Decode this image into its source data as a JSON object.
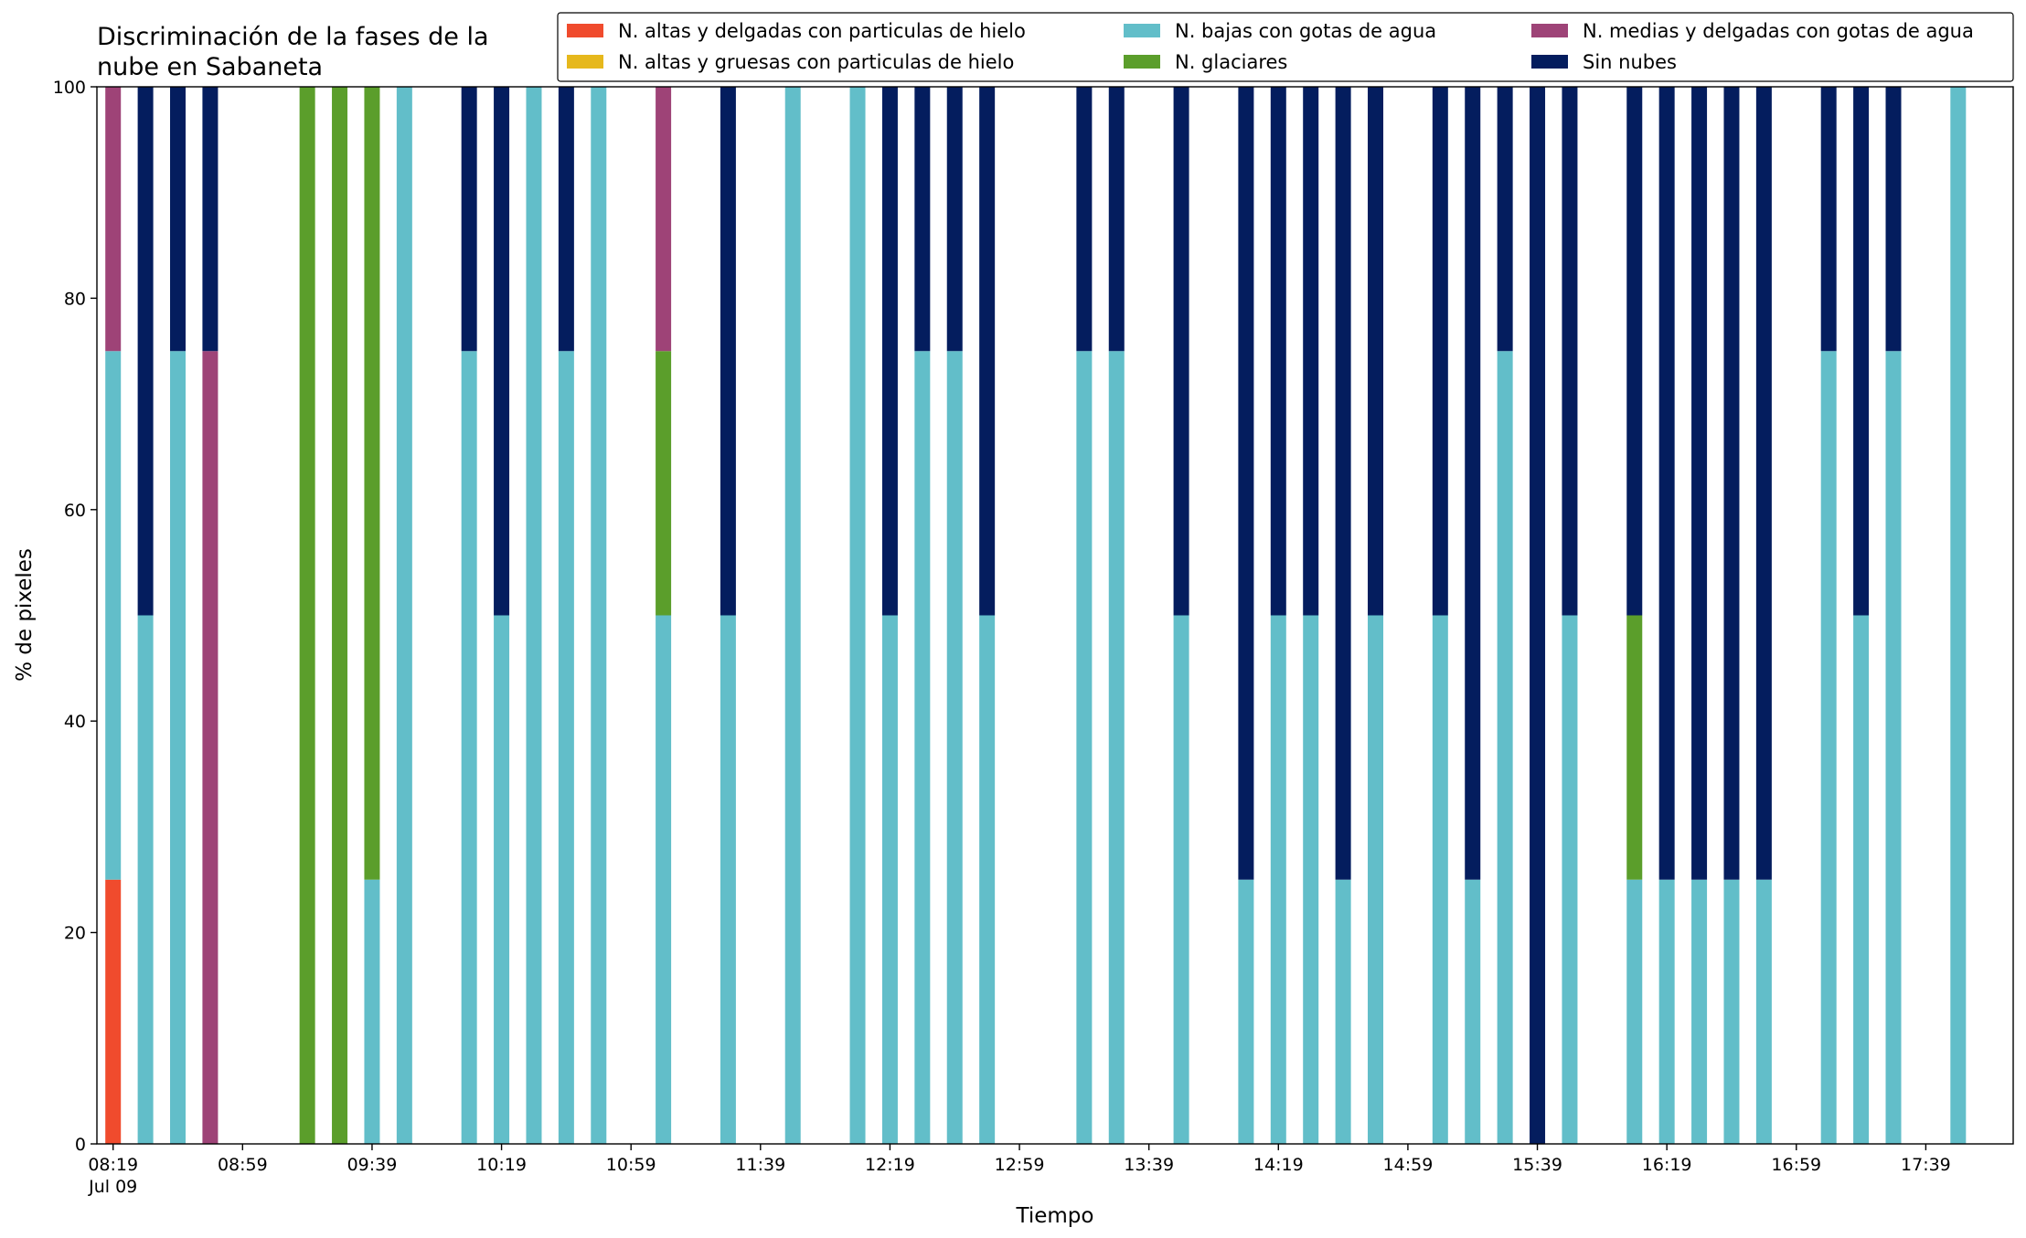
{
  "chart_data": {
    "type": "stacked_bar",
    "title": [
      "Discriminación de la fases de la",
      "nube en Sabaneta"
    ],
    "xlabel": "Tiempo",
    "ylabel": "% de pixeles",
    "x": [
      "08:19",
      "08:29",
      "08:39",
      "08:49",
      "08:59",
      "09:09",
      "09:19",
      "09:29",
      "09:39",
      "09:49",
      "09:59",
      "10:09",
      "10:19",
      "10:29",
      "10:39",
      "10:49",
      "10:59",
      "11:09",
      "11:19",
      "11:29",
      "11:39",
      "11:49",
      "11:59",
      "12:09",
      "12:19",
      "12:29",
      "12:39",
      "12:49",
      "12:59",
      "13:09",
      "13:19",
      "13:29",
      "13:39",
      "13:49",
      "13:59",
      "14:09",
      "14:19",
      "14:29",
      "14:39",
      "14:49",
      "14:59",
      "15:09",
      "15:19",
      "15:29",
      "15:39",
      "15:49",
      "15:59",
      "16:09",
      "16:19",
      "16:29",
      "16:39",
      "16:49",
      "16:59",
      "17:09",
      "17:19",
      "17:29",
      "17:39",
      "17:49"
    ],
    "series": [
      {
        "name": "N. altas y delgadas con particulas de hielo",
        "color": "#f04b2d",
        "values": [
          25,
          0,
          0,
          0,
          0,
          0,
          0,
          0,
          0,
          0,
          0,
          0,
          0,
          0,
          0,
          0,
          0,
          0,
          0,
          0,
          0,
          0,
          0,
          0,
          0,
          0,
          0,
          0,
          0,
          0,
          0,
          0,
          0,
          0,
          0,
          0,
          0,
          0,
          0,
          0,
          0,
          0,
          0,
          0,
          0,
          0,
          0,
          0,
          0,
          0,
          0,
          0,
          0,
          0,
          0,
          0,
          0,
          0
        ]
      },
      {
        "name": "N. altas y gruesas con particulas de hielo",
        "color": "#e6b81c",
        "values": [
          0,
          0,
          0,
          0,
          0,
          0,
          0,
          0,
          0,
          0,
          0,
          0,
          0,
          0,
          0,
          0,
          0,
          0,
          0,
          0,
          0,
          0,
          0,
          0,
          0,
          0,
          0,
          0,
          0,
          0,
          0,
          0,
          0,
          0,
          0,
          0,
          0,
          0,
          0,
          0,
          0,
          0,
          0,
          0,
          0,
          0,
          0,
          0,
          0,
          0,
          0,
          0,
          0,
          0,
          0,
          0,
          0,
          0
        ]
      },
      {
        "name": "N. bajas con gotas de agua",
        "color": "#62bec9",
        "values": [
          50,
          50,
          75,
          0,
          0,
          0,
          0,
          0,
          25,
          100,
          0,
          75,
          50,
          100,
          75,
          100,
          0,
          50,
          0,
          50,
          0,
          100,
          0,
          100,
          50,
          75,
          75,
          50,
          0,
          0,
          75,
          75,
          0,
          50,
          0,
          25,
          50,
          50,
          25,
          50,
          0,
          50,
          25,
          75,
          0,
          50,
          0,
          25,
          25,
          25,
          25,
          25,
          0,
          75,
          50,
          75,
          0,
          100
        ]
      },
      {
        "name": "N. glaciares",
        "color": "#5b9e2b",
        "values": [
          0,
          0,
          0,
          0,
          0,
          0,
          100,
          100,
          75,
          0,
          0,
          0,
          0,
          0,
          0,
          0,
          0,
          25,
          0,
          0,
          0,
          0,
          0,
          0,
          0,
          0,
          0,
          0,
          0,
          0,
          0,
          0,
          0,
          0,
          0,
          0,
          0,
          0,
          0,
          0,
          0,
          0,
          0,
          0,
          0,
          0,
          0,
          25,
          0,
          0,
          0,
          0,
          0,
          0,
          0,
          0,
          0,
          0
        ]
      },
      {
        "name": "N. medias y delgadas con gotas de agua",
        "color": "#9e4377",
        "values": [
          25,
          0,
          0,
          75,
          0,
          0,
          0,
          0,
          0,
          0,
          0,
          0,
          0,
          0,
          0,
          0,
          0,
          25,
          0,
          0,
          0,
          0,
          0,
          0,
          0,
          0,
          0,
          0,
          0,
          0,
          0,
          0,
          0,
          0,
          0,
          0,
          0,
          0,
          0,
          0,
          0,
          0,
          0,
          0,
          0,
          0,
          0,
          0,
          0,
          0,
          0,
          0,
          0,
          0,
          0,
          0,
          0,
          0
        ]
      },
      {
        "name": "Sin nubes",
        "color": "#041d5e",
        "values": [
          0,
          50,
          25,
          25,
          0,
          0,
          0,
          0,
          0,
          0,
          0,
          25,
          50,
          0,
          25,
          0,
          0,
          0,
          0,
          50,
          0,
          0,
          0,
          0,
          50,
          25,
          25,
          50,
          0,
          0,
          25,
          25,
          0,
          50,
          0,
          75,
          50,
          50,
          75,
          50,
          0,
          50,
          75,
          25,
          100,
          50,
          0,
          50,
          75,
          75,
          75,
          75,
          0,
          25,
          50,
          25,
          0,
          0
        ]
      }
    ],
    "xlim": [
      "08:14",
      "18:06"
    ],
    "xticks": [
      {
        "value": "08:19",
        "label": "08:19\nJul 09"
      },
      "08:59",
      "09:39",
      "10:19",
      "10:59",
      "11:39",
      "12:19",
      "12:59",
      "13:39",
      "14:19",
      "14:59",
      "15:39",
      "16:19",
      "16:59",
      "17:39"
    ],
    "ylim": [
      0,
      100
    ],
    "yticks": [
      0,
      20,
      40,
      60,
      80,
      100
    ],
    "legend": "top-right"
  }
}
